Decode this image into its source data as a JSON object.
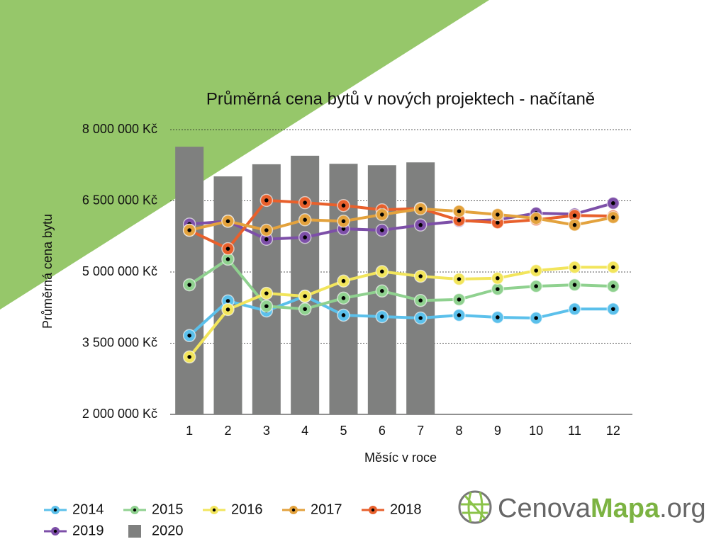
{
  "chart_data": {
    "type": "line",
    "title": "Průměrná cena bytů v nových projektech - načítaně",
    "x_label": "Měsíc v roce",
    "y_label": "Průměrná cena bytu",
    "categories": [
      "1",
      "2",
      "3",
      "4",
      "5",
      "6",
      "7",
      "8",
      "9",
      "10",
      "11",
      "12"
    ],
    "ylim": [
      2000000,
      8000000
    ],
    "yticks": [
      {
        "value": 2000000,
        "label": "2 000 000 Kč"
      },
      {
        "value": 3500000,
        "label": "3 500 000 Kč"
      },
      {
        "value": 5000000,
        "label": "5 000 000 Kč"
      },
      {
        "value": 6500000,
        "label": "6 500 000 Kč"
      },
      {
        "value": 8000000,
        "label": "8 000 000 Kč"
      }
    ],
    "grid": true,
    "legend": "bottom-left",
    "series": [
      {
        "name": "2020",
        "type": "bar",
        "color": "#7f807f",
        "values": [
          7640000,
          7015000,
          7270000,
          7450000,
          7280000,
          7250000,
          7310000,
          null,
          null,
          null,
          null,
          null
        ]
      },
      {
        "name": "2014",
        "color": "#5bc0eb",
        "values": [
          3660000,
          4390000,
          4180000,
          4490000,
          4090000,
          4060000,
          4030000,
          4090000,
          4045000,
          4030000,
          4220000,
          4220000
        ]
      },
      {
        "name": "2015",
        "color": "#8fd18f",
        "values": [
          4730000,
          5270000,
          4280000,
          4220000,
          4450000,
          4600000,
          4400000,
          4420000,
          4640000,
          4700000,
          4730000,
          4700000
        ]
      },
      {
        "name": "2016",
        "color": "#f2e55c",
        "values": [
          3210000,
          4210000,
          4550000,
          4490000,
          4810000,
          5010000,
          4910000,
          4850000,
          4870000,
          5030000,
          5100000,
          5100000
        ]
      },
      {
        "name": "2019",
        "color": "#7d4fa8",
        "values": [
          6010000,
          6070000,
          5690000,
          5730000,
          5910000,
          5880000,
          5990000,
          6070000,
          6100000,
          6240000,
          6220000,
          6450000
        ]
      },
      {
        "name": "2018",
        "color": "#e8602c",
        "values": [
          5880000,
          5490000,
          6510000,
          6460000,
          6400000,
          6310000,
          6340000,
          6090000,
          6040000,
          6100000,
          6190000,
          6180000
        ]
      },
      {
        "name": "2017",
        "color": "#e3a23d",
        "values": [
          5880000,
          6070000,
          5880000,
          6100000,
          6070000,
          6210000,
          6330000,
          6280000,
          6210000,
          6130000,
          5990000,
          6150000
        ]
      }
    ],
    "legend_order": [
      1,
      2,
      3,
      6,
      5,
      4,
      0
    ]
  },
  "logo": {
    "part1": "Cenova",
    "part2": "Mapa",
    "part3": ".org"
  }
}
